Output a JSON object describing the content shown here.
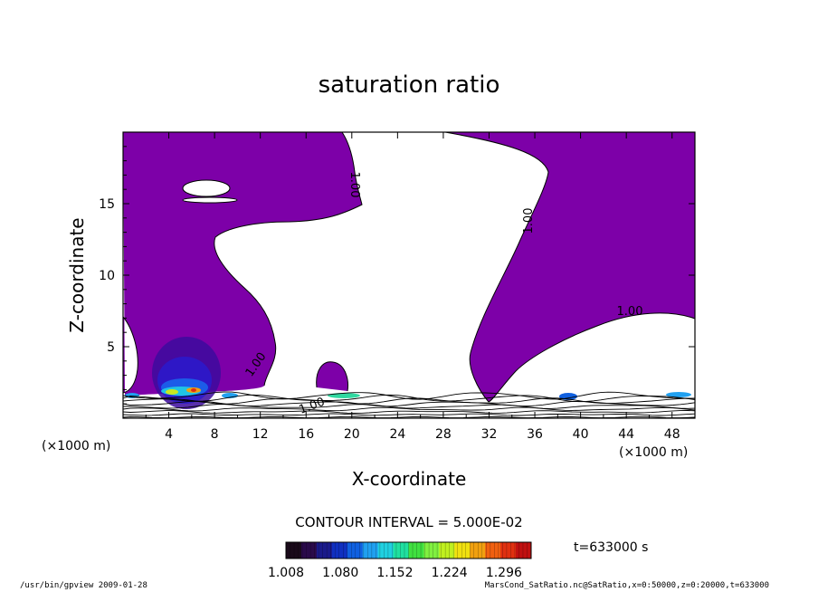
{
  "chart_data": {
    "type": "heatmap",
    "title": "saturation ratio",
    "xlabel": "X-coordinate",
    "ylabel": "Z-coordinate",
    "x_unit": "(×1000 m)",
    "y_unit": "(×1000 m)",
    "xlim": [
      0,
      50
    ],
    "ylim": [
      0,
      20
    ],
    "x_ticks": [
      4,
      8,
      12,
      16,
      20,
      24,
      28,
      32,
      36,
      40,
      44,
      48
    ],
    "y_ticks": [
      5,
      10,
      15
    ],
    "contour_labels": [
      "1.00",
      "1.00",
      "1.00",
      "1.00",
      "1.00"
    ],
    "contour_interval_text": "CONTOUR INTERVAL = 5.000E-02",
    "colorbar": {
      "min": 1.008,
      "max": 1.332,
      "tick_labels": [
        "1.008",
        "1.080",
        "1.152",
        "1.224",
        "1.296"
      ],
      "colors": [
        "#1a0a1a",
        "#2a0a4a",
        "#1a1a8a",
        "#1030c0",
        "#1060e0",
        "#20a0f0",
        "#20d0e0",
        "#20e0a0",
        "#40e040",
        "#80f040",
        "#c0f020",
        "#f0e010",
        "#f0a010",
        "#f06010",
        "#e03010",
        "#c01010"
      ]
    },
    "fill_color": "#7d00a8",
    "time_label": "t=633000 s",
    "footer_left": "/usr/bin/gpview   2009-01-28",
    "footer_right": "MarsCond_SatRatio.nc@SatRatio,x=0:50000,z=0:20000,t=633000"
  }
}
